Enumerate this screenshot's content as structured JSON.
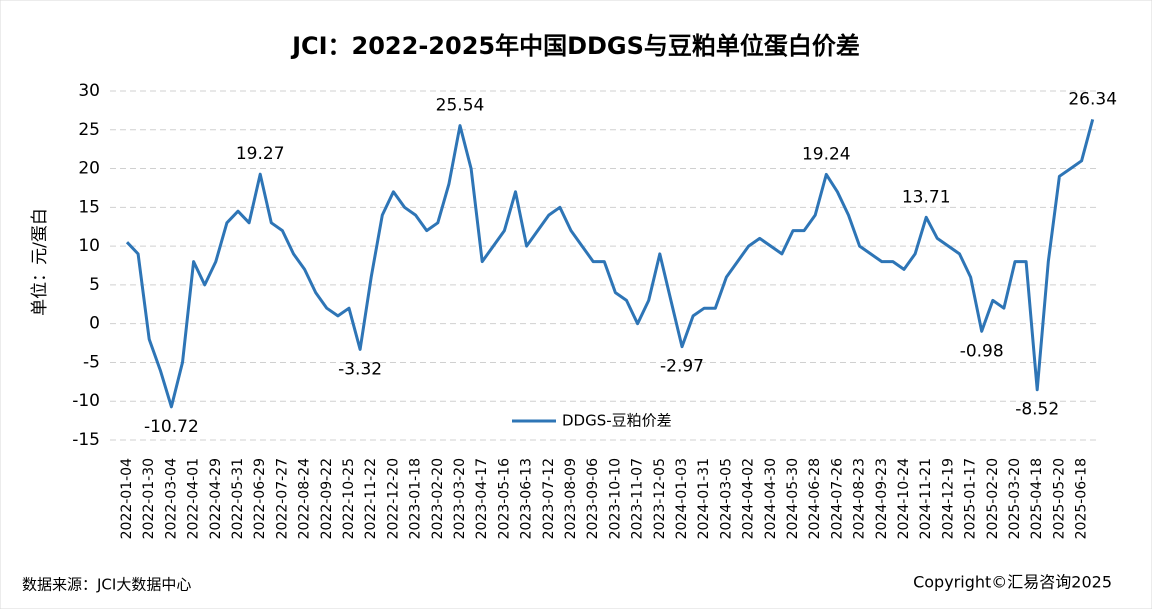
{
  "chart_data": {
    "type": "line",
    "title": "JCI：2022-2025年中国DDGS与豆粕单位蛋白价差",
    "y_label": "单位：元/蛋白",
    "source": "数据来源：JCI大数据中心",
    "copyright": "Copyright©汇易咨询2025",
    "categories": [
      "2022-01-04",
      null,
      "2022-01-30",
      null,
      "2022-03-04",
      null,
      "2022-04-01",
      null,
      "2022-04-29",
      null,
      "2022-05-31",
      null,
      "2022-06-29",
      null,
      "2022-07-27",
      null,
      "2022-08-24",
      null,
      "2022-09-22",
      null,
      "2022-10-25",
      null,
      "2022-11-22",
      null,
      "2022-12-20",
      null,
      "2023-01-18",
      null,
      "2023-02-20",
      null,
      "2023-03-20",
      null,
      "2023-04-17",
      null,
      "2023-05-16",
      null,
      "2023-06-13",
      null,
      "2023-07-12",
      null,
      "2023-08-09",
      null,
      "2023-09-06",
      null,
      "2023-10-10",
      null,
      "2023-11-07",
      null,
      "2023-12-05",
      null,
      "2024-01-03",
      null,
      "2024-01-31",
      null,
      "2024-03-05",
      null,
      "2024-04-02",
      null,
      "2024-04-30",
      null,
      "2024-05-30",
      null,
      "2024-06-28",
      null,
      "2024-07-26",
      null,
      "2024-08-23",
      null,
      "2024-09-23",
      null,
      "2024-10-24",
      null,
      "2024-11-21",
      null,
      "2024-12-19",
      null,
      "2025-01-17",
      null,
      "2025-02-20",
      null,
      "2025-03-20",
      null,
      "2025-04-18",
      null,
      "2025-05-20",
      null,
      "2025-06-18",
      null
    ],
    "series": [
      {
        "name": "DDGS-豆粕价差",
        "color": "#2e75b6",
        "values": [
          10.5,
          9,
          -2,
          -6,
          -10.72,
          -5,
          8,
          5,
          8,
          13,
          14.5,
          13,
          19.27,
          13,
          12,
          9,
          7,
          4,
          2,
          1,
          2,
          -3.32,
          6,
          14,
          17,
          15,
          14,
          12,
          13,
          18,
          25.54,
          20,
          8,
          10,
          12,
          17,
          10,
          12,
          14,
          15,
          12,
          10,
          8,
          8,
          4,
          3,
          0,
          3,
          9,
          3,
          -2.97,
          1,
          2,
          2,
          6,
          8,
          10,
          11,
          10,
          9,
          12,
          12,
          14,
          19.24,
          17,
          14,
          10,
          9,
          8,
          8,
          7,
          9,
          13.71,
          11,
          10,
          9,
          6,
          -0.98,
          3,
          2,
          8,
          8,
          -8.52,
          8,
          19,
          20,
          21,
          26.34
        ],
        "value_labels": [
          null,
          null,
          null,
          null,
          "-10.72",
          null,
          null,
          null,
          null,
          null,
          null,
          null,
          "19.27",
          null,
          null,
          null,
          null,
          null,
          null,
          null,
          null,
          "-3.32",
          null,
          null,
          null,
          null,
          null,
          null,
          null,
          null,
          "25.54",
          null,
          null,
          null,
          null,
          null,
          null,
          null,
          null,
          null,
          null,
          null,
          null,
          null,
          null,
          null,
          null,
          null,
          null,
          null,
          "-2.97",
          null,
          null,
          null,
          null,
          null,
          null,
          null,
          null,
          null,
          null,
          null,
          null,
          "19.24",
          null,
          null,
          null,
          null,
          null,
          null,
          null,
          null,
          "13.71",
          null,
          null,
          null,
          null,
          "-0.98",
          null,
          null,
          null,
          null,
          "-8.52",
          null,
          null,
          null,
          null,
          "26.34"
        ]
      }
    ],
    "positive_label_color": "#e00000",
    "negative_label_color": "#00a050",
    "ylim": [
      -15,
      30
    ],
    "yticks": [
      -15,
      -10,
      -5,
      0,
      5,
      10,
      15,
      20,
      25,
      30
    ],
    "grid": true,
    "legend": "bottom"
  }
}
